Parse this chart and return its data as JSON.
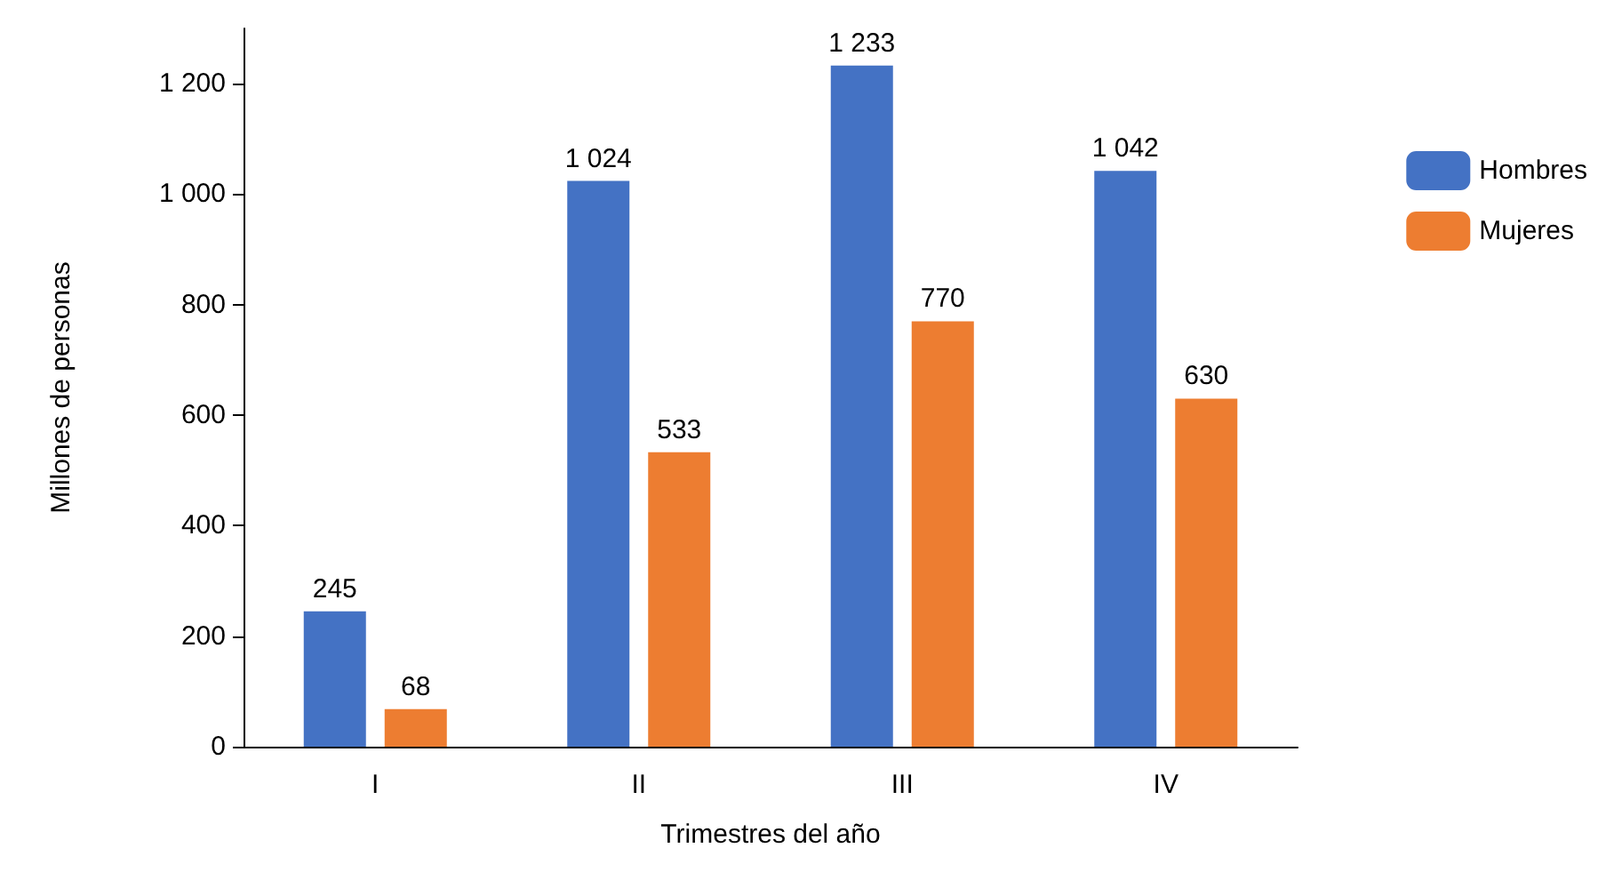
{
  "chart_data": {
    "type": "bar",
    "xlabel": "Trimestres del año",
    "ylabel": "Millones de personas",
    "categories": [
      "I",
      "II",
      "III",
      "IV"
    ],
    "series": [
      {
        "name": "Hombres",
        "color": "#4472c4",
        "values": [
          245,
          1024,
          1233,
          1042
        ],
        "value_labels": [
          "245",
          "1 024",
          "1 233",
          "1 042"
        ]
      },
      {
        "name": "Mujeres",
        "color": "#ed7d31",
        "values": [
          68,
          533,
          770,
          630
        ],
        "value_labels": [
          "68",
          "533",
          "770",
          "630"
        ]
      }
    ],
    "ylim": [
      0,
      1300
    ],
    "yticks": [
      0,
      200,
      400,
      600,
      800,
      {
        "value": 1000,
        "label": "1 000"
      },
      {
        "value": 1200,
        "label": "1 200"
      }
    ],
    "grid": false,
    "legend": "right"
  }
}
